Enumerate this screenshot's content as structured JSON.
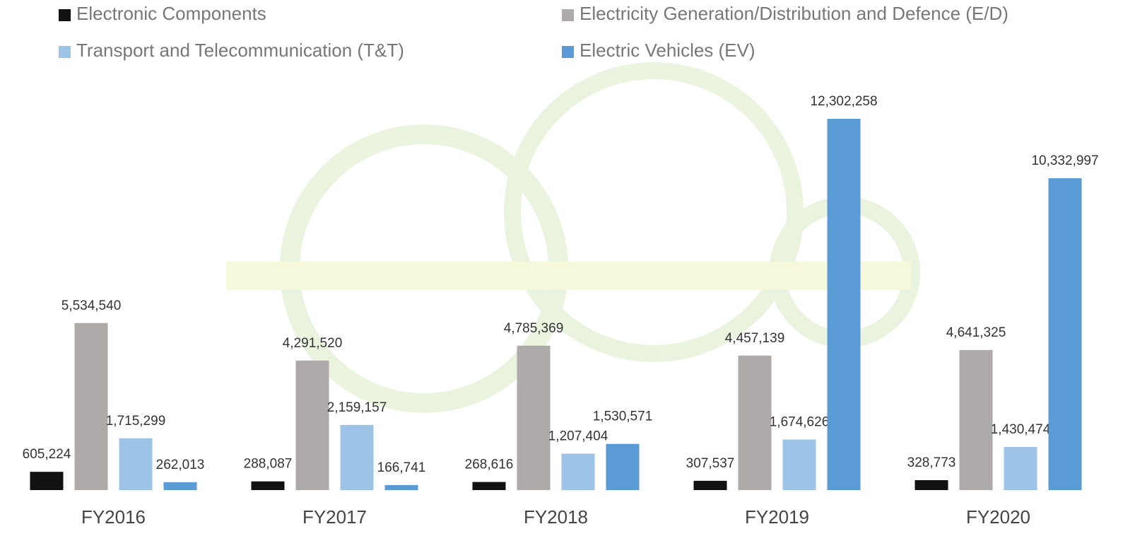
{
  "chart_data": {
    "type": "bar",
    "categories": [
      "FY2016",
      "FY2017",
      "FY2018",
      "FY2019",
      "FY2020"
    ],
    "series": [
      {
        "name": "Electronic Components",
        "color": "#111111",
        "values": [
          605224,
          288087,
          268616,
          307537,
          328773
        ],
        "value_labels": [
          "605,224",
          "288,087",
          "268,616",
          "307,537",
          "328,773"
        ]
      },
      {
        "name": "Electricity Generation/Distribution and Defence (E/D)",
        "color": "#aeaaaa",
        "values": [
          5534540,
          4291520,
          4785369,
          4457139,
          4641325
        ],
        "value_labels": [
          "5,534,540",
          "4,291,520",
          "4,785,369",
          "4,457,139",
          "4,641,325"
        ]
      },
      {
        "name": "Transport and Telecommunication (T&T)",
        "color": "#9dc3e6",
        "values": [
          1715299,
          2159157,
          1207404,
          1674626,
          1430474
        ],
        "value_labels": [
          "1,715,299",
          "2,159,157",
          "1,207,404",
          "1,674,626",
          "1,430,474"
        ]
      },
      {
        "name": "Electric Vehicles (EV)",
        "color": "#5b9bd5",
        "values": [
          262013,
          166741,
          1530571,
          12302258,
          10332997
        ],
        "value_labels": [
          "262,013",
          "166,741",
          "1,530,571",
          "12,302,258",
          "10,332,997"
        ]
      }
    ],
    "legend": "top"
  }
}
